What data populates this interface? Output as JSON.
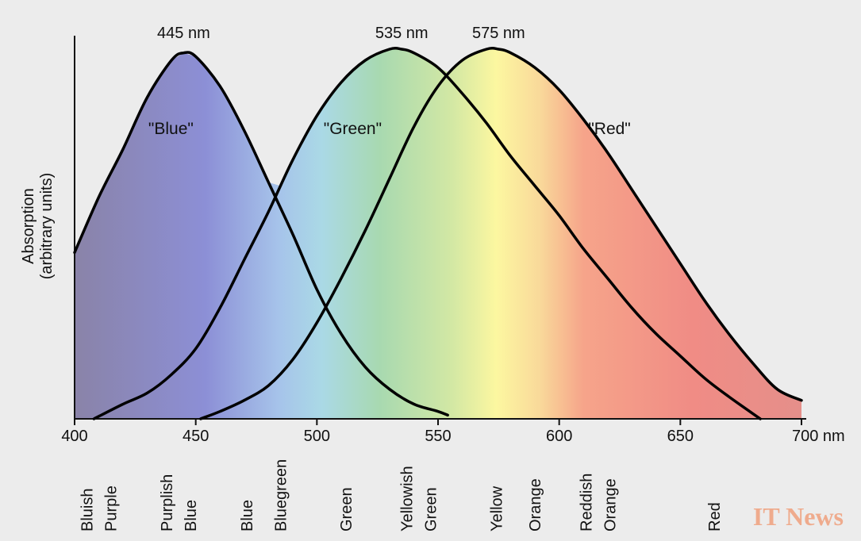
{
  "chart_data": {
    "type": "line",
    "xlabel_unit": "nm",
    "ylabel": [
      "Absorption",
      "(arbitrary units)"
    ],
    "xlim": [
      400,
      700
    ],
    "xticks": [
      400,
      450,
      500,
      550,
      600,
      650,
      700
    ],
    "xtick_labels": [
      "400",
      "450",
      "500",
      "550",
      "600",
      "650",
      "700 nm"
    ],
    "series": [
      {
        "name": "\"Blue\"",
        "peak_label": "445 nm",
        "peak": 445,
        "color": "#000000",
        "x": [
          400,
          410,
          420,
          430,
          440,
          445,
          450,
          460,
          470,
          480,
          490,
          500,
          510,
          520,
          530,
          540,
          550,
          554
        ],
        "y": [
          0.45,
          0.6,
          0.73,
          0.87,
          0.97,
          0.99,
          0.98,
          0.9,
          0.78,
          0.64,
          0.5,
          0.35,
          0.23,
          0.14,
          0.08,
          0.04,
          0.02,
          0.01
        ]
      },
      {
        "name": "\"Green\"",
        "peak_label": "535 nm",
        "peak": 535,
        "color": "#000000",
        "x": [
          408,
          420,
          430,
          440,
          450,
          460,
          470,
          480,
          490,
          500,
          510,
          520,
          530,
          535,
          540,
          550,
          560,
          570,
          580,
          590,
          600,
          610,
          620,
          630,
          640,
          650,
          660,
          670,
          683
        ],
        "y": [
          0.0,
          0.04,
          0.07,
          0.12,
          0.19,
          0.3,
          0.43,
          0.56,
          0.7,
          0.82,
          0.91,
          0.97,
          1.0,
          1.0,
          0.99,
          0.95,
          0.88,
          0.8,
          0.71,
          0.63,
          0.55,
          0.46,
          0.38,
          0.3,
          0.23,
          0.17,
          0.11,
          0.06,
          0.0
        ]
      },
      {
        "name": "\"Red\"",
        "peak_label": "575 nm",
        "peak": 575,
        "color": "#000000",
        "x": [
          452,
          460,
          470,
          480,
          490,
          500,
          510,
          520,
          530,
          540,
          550,
          560,
          570,
          575,
          580,
          590,
          600,
          610,
          620,
          630,
          640,
          650,
          660,
          670,
          680,
          690,
          700
        ],
        "y": [
          0.0,
          0.02,
          0.05,
          0.09,
          0.16,
          0.26,
          0.38,
          0.51,
          0.65,
          0.79,
          0.9,
          0.97,
          1.0,
          1.0,
          0.99,
          0.95,
          0.89,
          0.81,
          0.72,
          0.62,
          0.52,
          0.42,
          0.32,
          0.23,
          0.15,
          0.08,
          0.05
        ]
      }
    ],
    "curve_labels": [
      {
        "text": "\"Blue\"",
        "x": 445,
        "y": 0.77
      },
      {
        "text": "\"Green\"",
        "x": 520,
        "y": 0.77
      },
      {
        "text": "\"Red\"",
        "x": 626,
        "y": 0.77
      }
    ],
    "color_names": [
      {
        "lines": [
          "Bluish",
          "Purple"
        ],
        "x": 409
      },
      {
        "lines": [
          "Purplish",
          "Blue"
        ],
        "x": 442
      },
      {
        "lines": [
          "Blue"
        ],
        "x": 471
      },
      {
        "lines": [
          "Bluegreen"
        ],
        "x": 485
      },
      {
        "lines": [
          "Green"
        ],
        "x": 512
      },
      {
        "lines": [
          "Yellowish",
          "Green"
        ],
        "x": 541
      },
      {
        "lines": [
          "Yellow"
        ],
        "x": 574
      },
      {
        "lines": [
          "Orange"
        ],
        "x": 590
      },
      {
        "lines": [
          "Reddish",
          "Orange"
        ],
        "x": 615
      },
      {
        "lines": [
          "Red"
        ],
        "x": 664
      }
    ],
    "grid": false,
    "legend": "none"
  },
  "watermark": "IT News"
}
